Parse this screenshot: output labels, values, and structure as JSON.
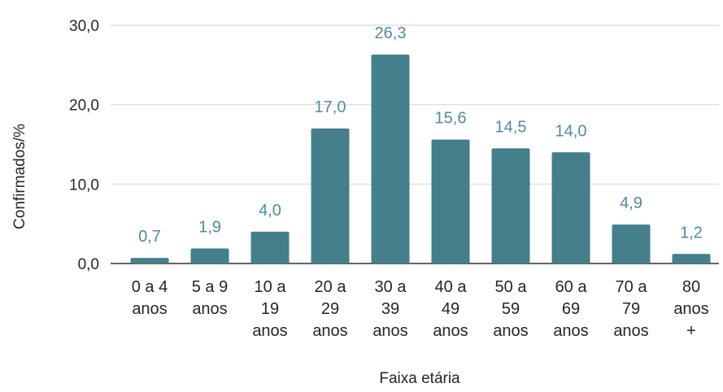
{
  "chart_data": {
    "type": "bar",
    "categories": [
      [
        "0 a 4",
        "anos"
      ],
      [
        "5 a 9",
        "anos"
      ],
      [
        "10 a",
        "19",
        "anos"
      ],
      [
        "20 a",
        "29",
        "anos"
      ],
      [
        "30 a",
        "39",
        "anos"
      ],
      [
        "40 a",
        "49",
        "anos"
      ],
      [
        "50 a",
        "59",
        "anos"
      ],
      [
        "60 a",
        "69",
        "anos"
      ],
      [
        "70 a",
        "79",
        "anos"
      ],
      [
        "80",
        "anos",
        "+"
      ]
    ],
    "values": [
      0.7,
      1.9,
      4.0,
      17.0,
      26.3,
      15.6,
      14.5,
      14.0,
      4.9,
      1.2
    ],
    "data_labels": [
      "0,7",
      "1,9",
      "4,0",
      "17,0",
      "26,3",
      "15,6",
      "14,5",
      "14,0",
      "4,9",
      "1,2"
    ],
    "y_ticks": [
      0,
      10,
      20,
      30
    ],
    "y_tick_labels": [
      "0,0",
      "10,0",
      "20,0",
      "30,0"
    ],
    "ylim": [
      0,
      30
    ],
    "xlabel": "Faixa etária",
    "ylabel": "Confirmados/%",
    "grid": true,
    "legend": "none",
    "colors": {
      "bar": "#447f8b",
      "label": "#4f8d9b",
      "grid": "#d9d9d9",
      "text": "#262626"
    }
  }
}
